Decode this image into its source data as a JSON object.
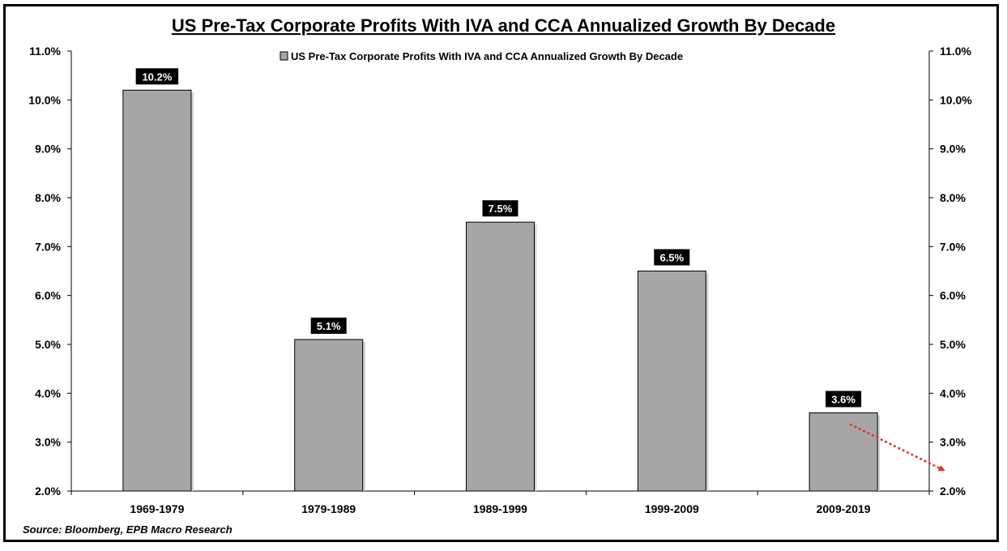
{
  "chart_data": {
    "type": "bar",
    "title": "US Pre-Tax Corporate Profits With IVA and CCA Annualized Growth By Decade",
    "legend": {
      "label": "US Pre-Tax Corporate Profits With IVA and CCA Annualized Growth By Decade",
      "placement": "top-center"
    },
    "categories": [
      "1969-1979",
      "1979-1989",
      "1989-1999",
      "1999-2009",
      "2009-2019"
    ],
    "values": [
      10.2,
      5.1,
      7.5,
      6.5,
      3.6
    ],
    "value_labels": [
      "10.2%",
      "5.1%",
      "7.5%",
      "6.5%",
      "3.6%"
    ],
    "xlabel": "",
    "ylabel": "",
    "ylim": [
      2.0,
      11.0
    ],
    "yticks": [
      2.0,
      3.0,
      4.0,
      5.0,
      6.0,
      7.0,
      8.0,
      9.0,
      10.0,
      11.0
    ],
    "ytick_labels": [
      "2.0%",
      "3.0%",
      "4.0%",
      "5.0%",
      "6.0%",
      "7.0%",
      "8.0%",
      "9.0%",
      "10.0%",
      "11.0%"
    ],
    "secondary_axis": true,
    "grid": false,
    "annotation": {
      "type": "dotted-arrow",
      "from_value": 3.4,
      "to_value": 2.5,
      "color": "#e8322c"
    }
  },
  "colors": {
    "bar_fill": "#a6a6a6",
    "bar_stroke": "#000000",
    "label_bg": "#000000",
    "label_text": "#ffffff",
    "arrow": "#e8322c"
  },
  "source": "Source: Bloomberg, EPB Macro Research"
}
